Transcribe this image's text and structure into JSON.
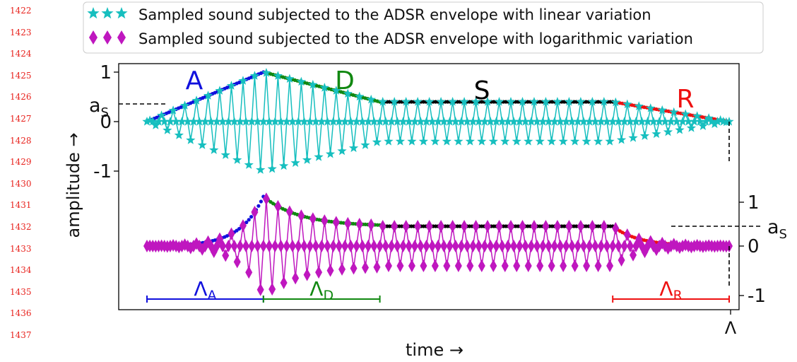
{
  "page": {
    "line_numbers": [
      "1422",
      "1423",
      "1424",
      "1425",
      "1426",
      "1427",
      "1428",
      "1429",
      "1430",
      "1431",
      "1432",
      "1433",
      "1434",
      "1435",
      "1436",
      "1437"
    ]
  },
  "chart_data": {
    "type": "line",
    "xlabel": "time →",
    "ylabel": "amplitude →",
    "x_tick_end_label": "Λ",
    "legend": {
      "placement": "top",
      "entries": [
        {
          "label": "Sampled sound subjected to the ADSR envelope with linear variation",
          "color": "#17bfbf",
          "marker": "star"
        },
        {
          "label": "Sampled sound subjected to the ADSR envelope with logarithmic variation",
          "color": "#bf17bf",
          "marker": "diamond"
        }
      ]
    },
    "panels": [
      {
        "name": "top",
        "variation": "linear",
        "axis_side": "left",
        "ticks": [
          {
            "value": 1,
            "label": "1"
          },
          {
            "value": 0,
            "label": "0"
          },
          {
            "value": -1,
            "label": "-1"
          }
        ],
        "sustain_marker": "a",
        "sustain_marker_sub": "S",
        "sustain_level": 0.4
      },
      {
        "name": "bottom",
        "variation": "logarithmic",
        "axis_side": "right",
        "ticks": [
          {
            "value": 1,
            "label": "1"
          },
          {
            "value": 0,
            "label": "0"
          },
          {
            "value": -1,
            "label": "-1"
          }
        ],
        "sustain_marker": "a",
        "sustain_marker_sub": "S",
        "sustain_level": 0.4
      }
    ],
    "envelope": {
      "duration": 1.0,
      "attack_end": 0.2,
      "decay_end": 0.4,
      "release_start": 0.8,
      "peak": 1.0,
      "sustain": 0.4
    },
    "oscillation_cycles": 50,
    "segments": [
      {
        "name": "A",
        "label": "A",
        "color": "#1111dd"
      },
      {
        "name": "D",
        "label": "D",
        "color": "#118811"
      },
      {
        "name": "S",
        "label": "S",
        "color": "#000000"
      },
      {
        "name": "R",
        "label": "R",
        "color": "#ee1111"
      }
    ],
    "durations": [
      {
        "name": "attack",
        "symbol": "Λ",
        "sub": "A",
        "color": "#1111dd",
        "from": 0.0,
        "to": 0.2
      },
      {
        "name": "decay",
        "symbol": "Λ",
        "sub": "D",
        "color": "#118811",
        "from": 0.2,
        "to": 0.4
      },
      {
        "name": "release",
        "symbol": "Λ",
        "sub": "R",
        "color": "#ee1111",
        "from": 0.8,
        "to": 1.0
      }
    ]
  }
}
